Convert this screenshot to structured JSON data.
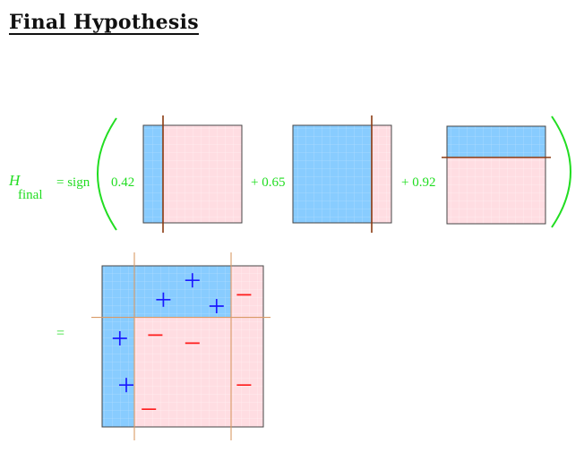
{
  "title": "Final Hypothesis",
  "equation": {
    "lhs_symbol": "H",
    "lhs_subscript": "final",
    "equals_sign": "= sign",
    "coefficients": [
      "0.42",
      "+ 0.65",
      "+ 0.92"
    ],
    "result_equals": "="
  },
  "classifiers": [
    {
      "split": "vertical",
      "threshold": 0.2,
      "low_side": "blue"
    },
    {
      "split": "vertical",
      "threshold": 0.8,
      "low_side": "blue"
    },
    {
      "split": "horizontal",
      "threshold": 0.32,
      "low_side": "blue"
    }
  ],
  "final_region": {
    "vertical_cuts": [
      0.2,
      0.8
    ],
    "horizontal_cut": 0.32,
    "points": [
      {
        "label": "+",
        "x": 0.56,
        "y": 0.09
      },
      {
        "label": "+",
        "x": 0.38,
        "y": 0.21
      },
      {
        "label": "+",
        "x": 0.71,
        "y": 0.25
      },
      {
        "label": "−",
        "x": 0.88,
        "y": 0.18
      },
      {
        "label": "+",
        "x": 0.11,
        "y": 0.45
      },
      {
        "label": "−",
        "x": 0.33,
        "y": 0.43
      },
      {
        "label": "−",
        "x": 0.56,
        "y": 0.48
      },
      {
        "label": "+",
        "x": 0.15,
        "y": 0.74
      },
      {
        "label": "−",
        "x": 0.88,
        "y": 0.74
      },
      {
        "label": "−",
        "x": 0.29,
        "y": 0.89
      }
    ]
  },
  "colors": {
    "positive_region": "#88ccff",
    "negative_region": "#ffdde2",
    "cut_line": "#8b3a10",
    "result_cut_line": "#d99a66",
    "plus": "#1a1aff",
    "minus": "#ff1a1a",
    "equation_text": "#22dd22"
  }
}
